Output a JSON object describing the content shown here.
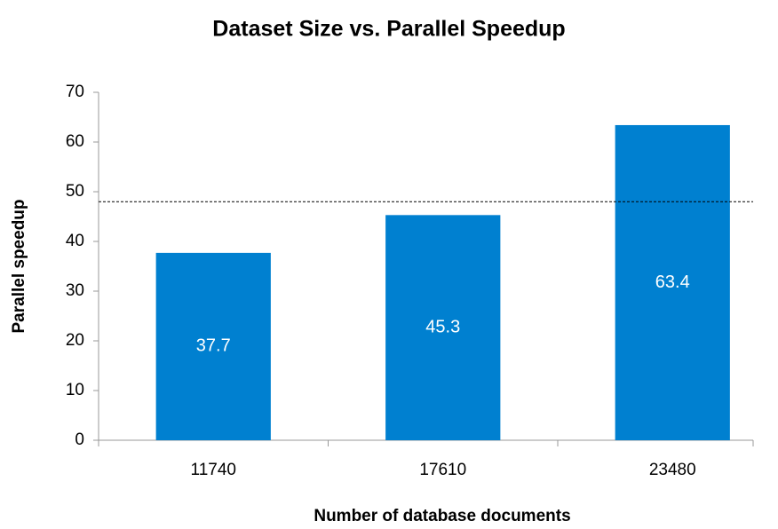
{
  "chart_data": {
    "type": "bar",
    "title": "Dataset Size vs. Parallel Speedup",
    "x_label": "Number of database documents",
    "y_label": "Parallel speedup",
    "categories": [
      "11740",
      "17610",
      "23480"
    ],
    "values": [
      37.7,
      45.3,
      63.4
    ],
    "color": "#0080d0",
    "ylim": [
      0,
      70
    ],
    "yticks": [
      0,
      10,
      20,
      30,
      40,
      50,
      60,
      70
    ],
    "grid": false,
    "reference_line": 48
  }
}
